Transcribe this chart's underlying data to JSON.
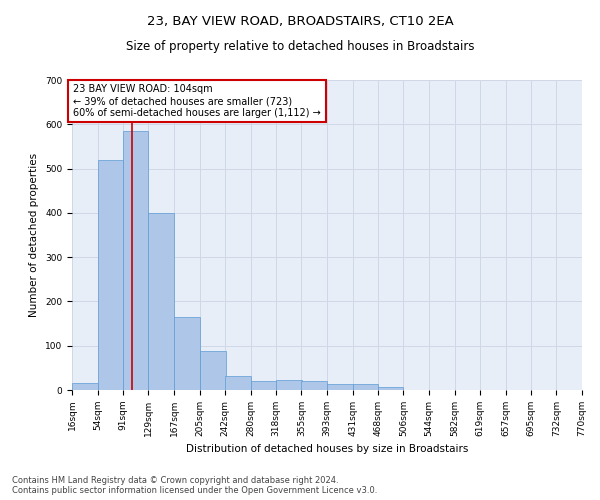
{
  "title": "23, BAY VIEW ROAD, BROADSTAIRS, CT10 2EA",
  "subtitle": "Size of property relative to detached houses in Broadstairs",
  "xlabel": "Distribution of detached houses by size in Broadstairs",
  "ylabel": "Number of detached properties",
  "bar_color": "#aec6e8",
  "bar_edge_color": "#5b9bd5",
  "bar_values": [
    15,
    520,
    585,
    400,
    165,
    88,
    32,
    20,
    22,
    20,
    13,
    13,
    6,
    0,
    0,
    0,
    0,
    0,
    0
  ],
  "bin_edges": [
    16,
    54,
    91,
    129,
    167,
    205,
    242,
    280,
    318,
    355,
    393,
    431,
    468,
    506,
    544,
    582,
    619,
    657,
    695,
    732
  ],
  "tick_labels": [
    "16sqm",
    "54sqm",
    "91sqm",
    "129sqm",
    "167sqm",
    "205sqm",
    "242sqm",
    "280sqm",
    "318sqm",
    "355sqm",
    "393sqm",
    "431sqm",
    "468sqm",
    "506sqm",
    "544sqm",
    "582sqm",
    "619sqm",
    "657sqm",
    "695sqm",
    "732sqm",
    "770sqm"
  ],
  "vline_x": 104,
  "vline_color": "#cc0000",
  "annotation_text": "23 BAY VIEW ROAD: 104sqm\n← 39% of detached houses are smaller (723)\n60% of semi-detached houses are larger (1,112) →",
  "annotation_box_color": "#ffffff",
  "annotation_box_edge": "#cc0000",
  "ylim": [
    0,
    700
  ],
  "yticks": [
    0,
    100,
    200,
    300,
    400,
    500,
    600,
    700
  ],
  "grid_color": "#d0d8e8",
  "background_color": "#e8eef8",
  "footer_line1": "Contains HM Land Registry data © Crown copyright and database right 2024.",
  "footer_line2": "Contains public sector information licensed under the Open Government Licence v3.0.",
  "title_fontsize": 9.5,
  "subtitle_fontsize": 8.5,
  "axis_label_fontsize": 7.5,
  "tick_fontsize": 6.5,
  "annotation_fontsize": 7,
  "footer_fontsize": 6
}
